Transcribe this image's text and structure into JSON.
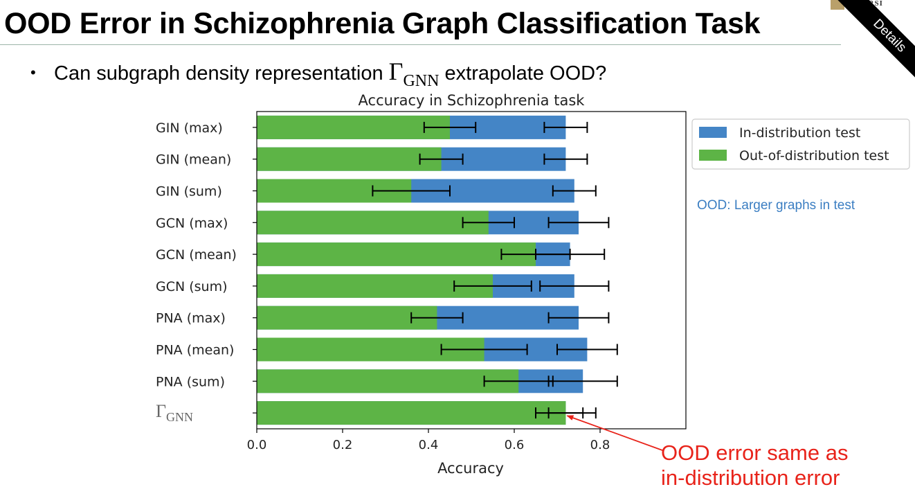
{
  "slide": {
    "title": "OOD Error in Schizophrenia Graph Classification Task",
    "bullet_dot": "•",
    "bullet_pre": "Can subgraph density representation ",
    "bullet_gamma": "Γ",
    "bullet_sub": "GNN",
    "bullet_post": " extrapolate OOD?",
    "logo_text": "NIVERSI",
    "ribbon": "Details",
    "ood_note": "OOD: Larger graphs in test",
    "callout_line1": "OOD error same as",
    "callout_line2": "in-distribution error"
  },
  "chart_data": {
    "type": "bar",
    "orientation": "horizontal",
    "title": "Accuracy in Schizophrenia task",
    "xlabel": "Accuracy",
    "ylabel": "",
    "xlim": [
      0,
      1.0
    ],
    "xticks": [
      0.0,
      0.2,
      0.4,
      0.6,
      0.8
    ],
    "xtick_labels": [
      "0.0",
      "0.2",
      "0.4",
      "0.6",
      "0.8"
    ],
    "grid": false,
    "legend_position": "outside-top-right",
    "categories": [
      "GIN (max)",
      "GIN (mean)",
      "GIN (sum)",
      "GCN (max)",
      "GCN (mean)",
      "GCN (sum)",
      "PNA (max)",
      "PNA (mean)",
      "PNA (sum)",
      "ΓGNN"
    ],
    "series": [
      {
        "name": "In-distribution test",
        "color": "#4485c6",
        "values": [
          0.72,
          0.72,
          0.74,
          0.75,
          0.73,
          0.74,
          0.75,
          0.77,
          0.76,
          0.72
        ],
        "errors": [
          0.05,
          0.05,
          0.05,
          0.07,
          0.08,
          0.08,
          0.07,
          0.07,
          0.08,
          0.04
        ]
      },
      {
        "name": "Out-of-distribution test",
        "color": "#5db446",
        "values": [
          0.45,
          0.43,
          0.36,
          0.54,
          0.65,
          0.55,
          0.42,
          0.53,
          0.61,
          0.72
        ],
        "errors": [
          0.06,
          0.05,
          0.09,
          0.06,
          0.08,
          0.09,
          0.06,
          0.1,
          0.08,
          0.07
        ]
      }
    ],
    "annotation_color": "#e8231a"
  }
}
